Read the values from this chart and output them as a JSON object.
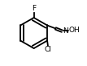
{
  "background_color": "#ffffff",
  "bond_color": "#000000",
  "atom_colors": {
    "F": "#000000",
    "Cl": "#000000",
    "N": "#000000",
    "O": "#000000",
    "H": "#000000"
  },
  "figsize": [
    1.07,
    0.82
  ],
  "dpi": 100
}
